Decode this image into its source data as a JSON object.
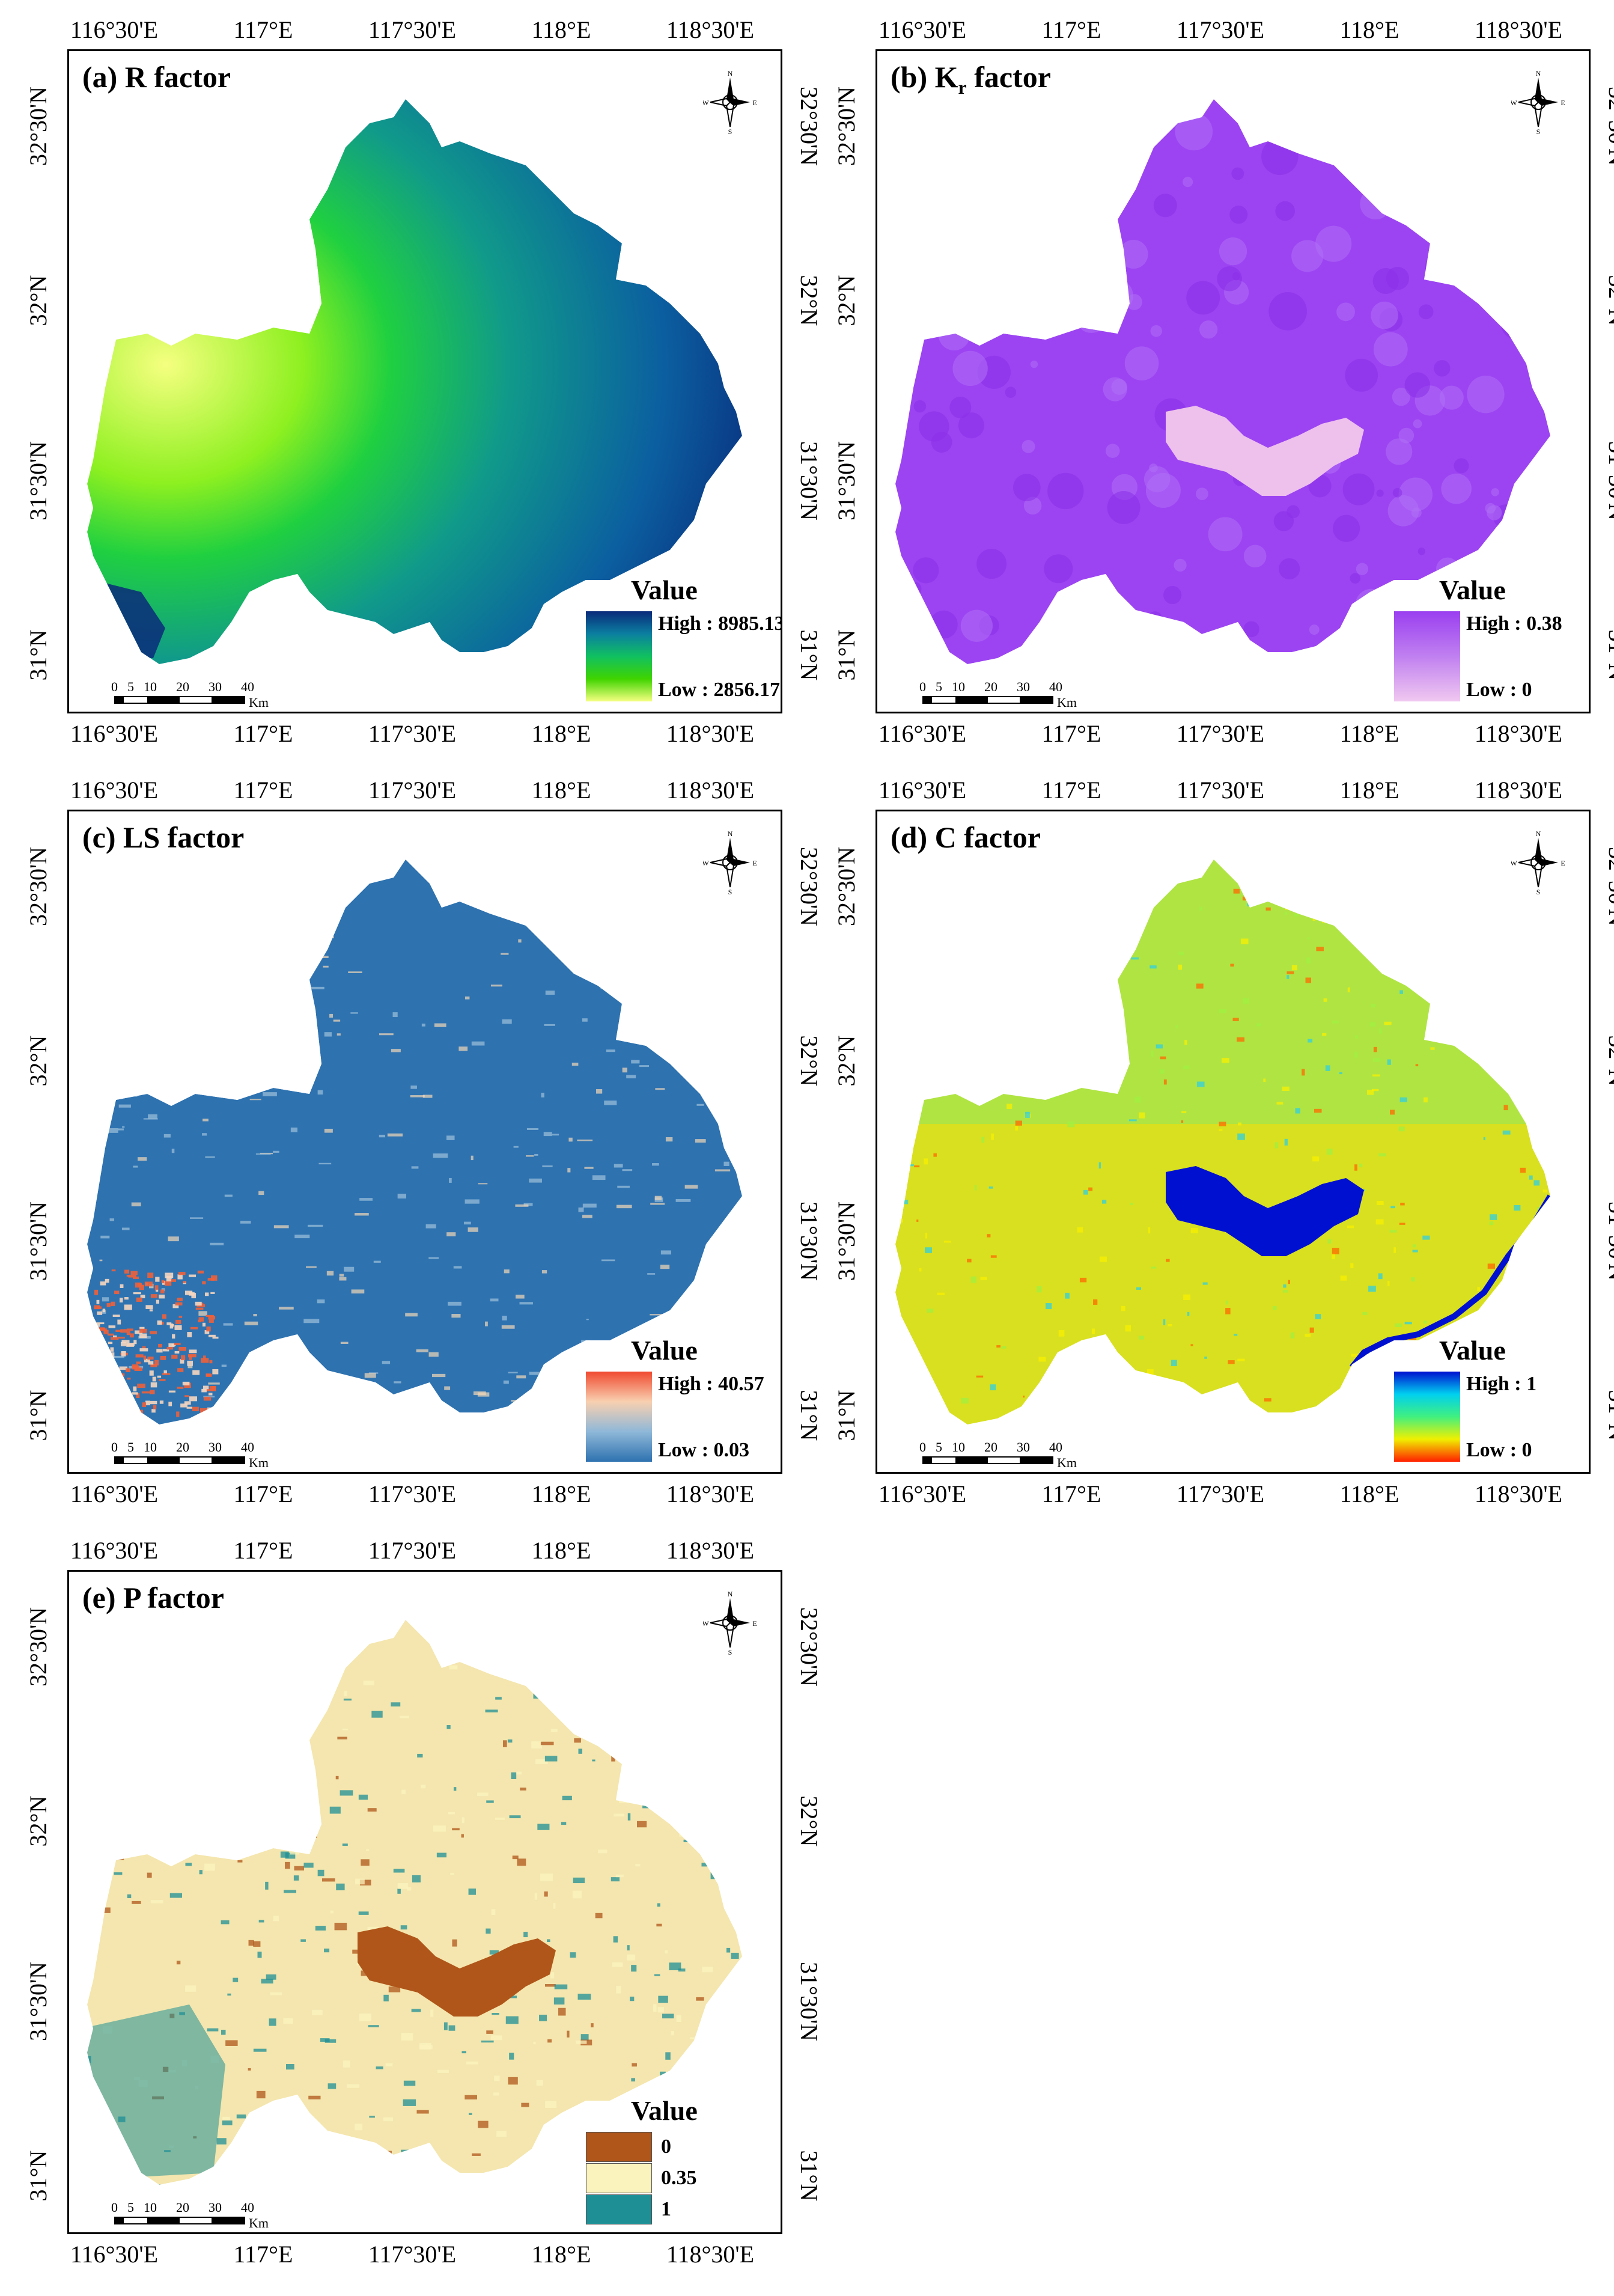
{
  "axes": {
    "lon_labels": [
      "116°30'E",
      "117°E",
      "117°30'E",
      "118°E",
      "118°30'E"
    ],
    "lat_labels": [
      "32°30'N",
      "32°N",
      "31°30'N",
      "31°N"
    ]
  },
  "scale_bar": {
    "labels": [
      "0",
      "5",
      "10",
      "20",
      "30",
      "40"
    ],
    "unit": "Km"
  },
  "north_arrow": {
    "n": "N",
    "s": "S",
    "e": "E",
    "w": "W"
  },
  "panels": [
    {
      "id": "a",
      "title_main": "(a) R factor",
      "title_sub": "",
      "legend_title": "Value",
      "legend_type": "gradient",
      "high_label": "High : 8985.13",
      "low_label": "Low : 2856.17",
      "colors": [
        "#0a2a7a",
        "#0b7fa0",
        "#10c060",
        "#3fd400",
        "#f5ff80"
      ],
      "fill": "#2a9f7e"
    },
    {
      "id": "b",
      "title_main": "(b) K",
      "title_sub": "r",
      "title_tail": " factor",
      "legend_title": "Value",
      "legend_type": "gradient",
      "high_label": "High : 0.38",
      "low_label": "Low : 0",
      "colors": [
        "#9a3ff0",
        "#c080f0",
        "#f0c8f0"
      ],
      "fill": "#9c44f2"
    },
    {
      "id": "c",
      "title_main": "(c) LS factor",
      "title_sub": "",
      "legend_title": "Value",
      "legend_type": "gradient",
      "high_label": "High : 40.57",
      "low_label": "Low : 0.03",
      "colors": [
        "#f04a30",
        "#f8d0b0",
        "#8fb8d8",
        "#2e72b0"
      ],
      "fill": "#2e72b0"
    },
    {
      "id": "d",
      "title_main": "(d) C factor",
      "title_sub": "",
      "legend_title": "Value",
      "legend_type": "gradient",
      "high_label": "High : 1",
      "low_label": "Low : 0",
      "colors": [
        "#0010d0",
        "#00d0f0",
        "#40f080",
        "#f0f000",
        "#ff2000"
      ],
      "fill": "#d8e020"
    },
    {
      "id": "e",
      "title_main": "(e) P factor",
      "title_sub": "",
      "legend_title": "Value",
      "legend_type": "classes",
      "classes": [
        {
          "label": "0",
          "color": "#b0561a"
        },
        {
          "label": "0.35",
          "color": "#fbf3bd"
        },
        {
          "label": "1",
          "color": "#1f8f96"
        }
      ],
      "fill": "#f4e6ae"
    }
  ]
}
